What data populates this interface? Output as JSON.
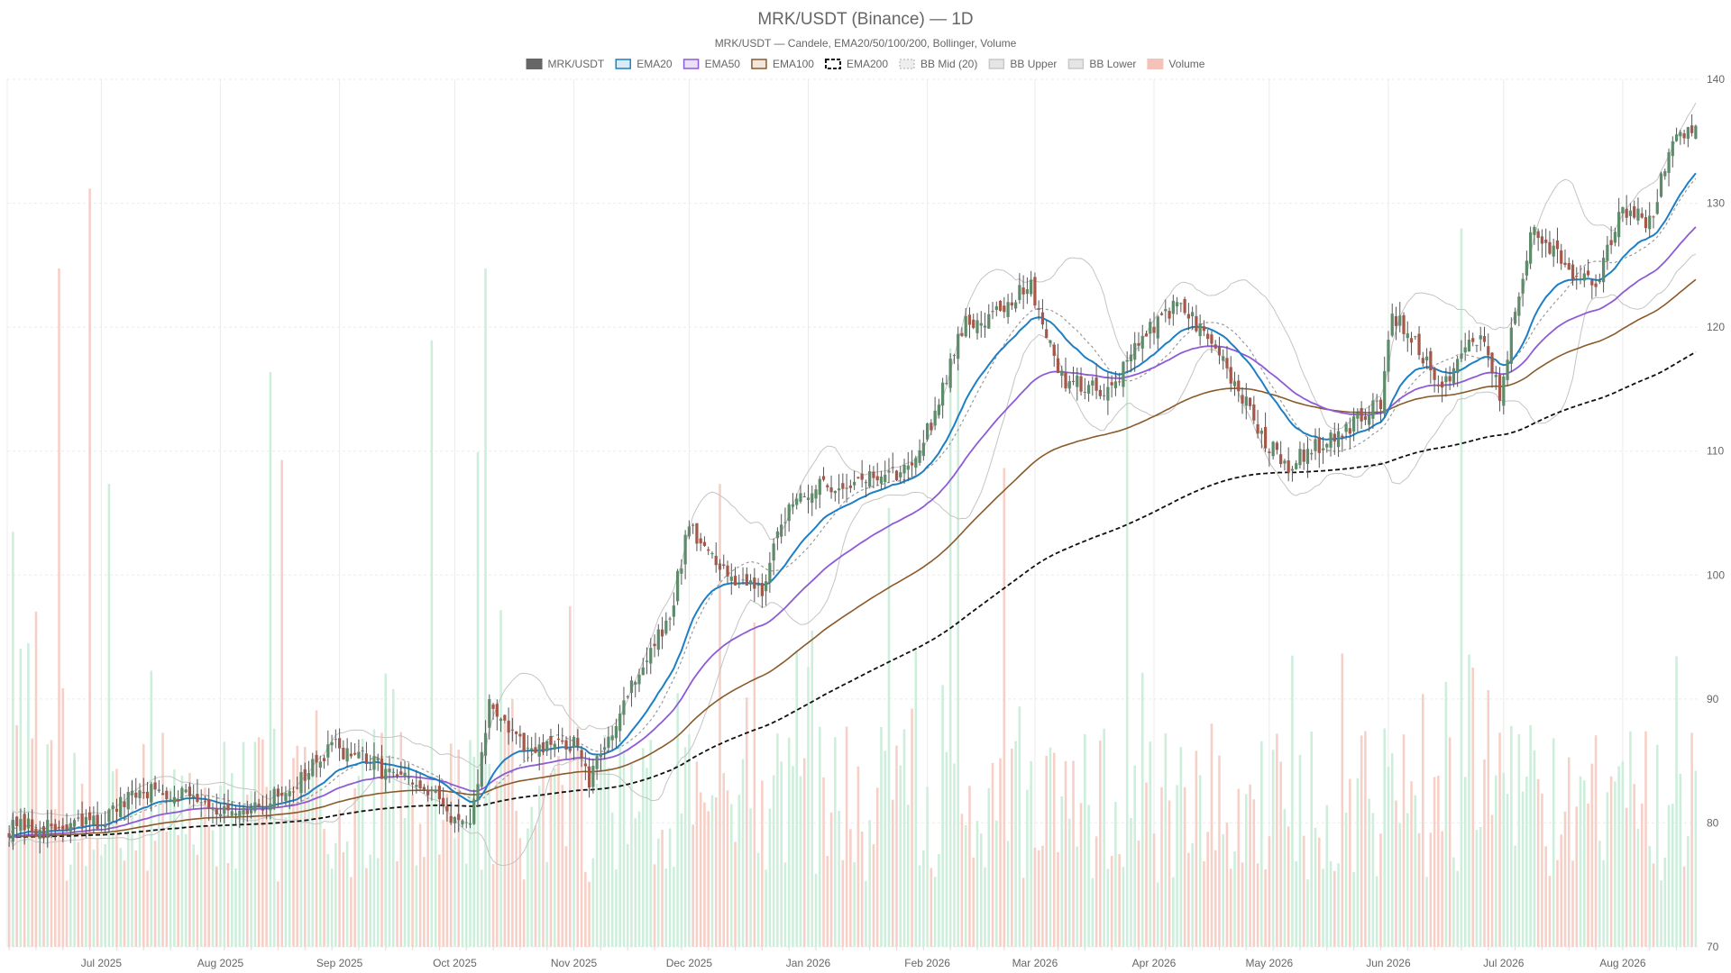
{
  "chart_data": {
    "type": "candlestick",
    "title": "MRK/USDT (Binance) — 1D",
    "subtitle": "MRK/USDT — Candele, EMA20/50/100/200, Bollinger, Volume",
    "legend": [
      {
        "label": "MRK/USDT",
        "swatch": "candle",
        "color": "#666666"
      },
      {
        "label": "EMA20",
        "swatch": "line",
        "color": "#1f7fc4"
      },
      {
        "label": "EMA50",
        "swatch": "line",
        "color": "#8e5bd6"
      },
      {
        "label": "EMA100",
        "swatch": "line",
        "color": "#8a5a2b"
      },
      {
        "label": "EMA200",
        "swatch": "dashed",
        "color": "#111111"
      },
      {
        "label": "BB Mid (20)",
        "swatch": "dotted",
        "color": "#aaaaaa"
      },
      {
        "label": "BB Upper",
        "swatch": "line",
        "color": "#c8c8c8"
      },
      {
        "label": "BB Lower",
        "swatch": "line",
        "color": "#c8c8c8"
      },
      {
        "label": "Volume",
        "swatch": "volume",
        "color": "#f4c2b8"
      }
    ],
    "legend_position": "top-center",
    "colors": {
      "up_candle": "#5e8c6a",
      "down_candle": "#a5574a",
      "wick": "#555555",
      "volume_up": "#cdeedb",
      "volume_down": "#f6cfc6",
      "grid": "#ebebeb"
    },
    "x_axis": {
      "start": "2025-06-07",
      "end": "2026-08-20",
      "ticks": [
        {
          "date": "2025-07-01",
          "label": "Jul 2025"
        },
        {
          "date": "2025-08-01",
          "label": "Aug 2025"
        },
        {
          "date": "2025-09-01",
          "label": "Sep 2025"
        },
        {
          "date": "2025-10-01",
          "label": "Oct 2025"
        },
        {
          "date": "2025-11-01",
          "label": "Nov 2025"
        },
        {
          "date": "2025-12-01",
          "label": "Dec 2025"
        },
        {
          "date": "2026-01-01",
          "label": "Jan 2026"
        },
        {
          "date": "2026-02-01",
          "label": "Feb 2026"
        },
        {
          "date": "2026-03-01",
          "label": "Mar 2026"
        },
        {
          "date": "2026-04-01",
          "label": "Apr 2026"
        },
        {
          "date": "2026-05-01",
          "label": "May 2026"
        },
        {
          "date": "2026-06-01",
          "label": "Jun 2026"
        },
        {
          "date": "2026-07-01",
          "label": "Jul 2026"
        },
        {
          "date": "2026-08-01",
          "label": "Aug 2026"
        }
      ]
    },
    "y_axis": {
      "position": "right",
      "range": [
        70,
        140
      ],
      "ticks": [
        70,
        80,
        90,
        100,
        110,
        120,
        130,
        140
      ]
    },
    "grid": true,
    "price_anchors": [
      {
        "date": "2025-06-07",
        "price": 79.6
      },
      {
        "date": "2025-06-20",
        "price": 79.5
      },
      {
        "date": "2025-07-01",
        "price": 80.2
      },
      {
        "date": "2025-07-12",
        "price": 82.6
      },
      {
        "date": "2025-07-25",
        "price": 82.5
      },
      {
        "date": "2025-08-05",
        "price": 80.2
      },
      {
        "date": "2025-08-20",
        "price": 83.0
      },
      {
        "date": "2025-08-31",
        "price": 86.2
      },
      {
        "date": "2025-09-15",
        "price": 83.9
      },
      {
        "date": "2025-09-26",
        "price": 82.0
      },
      {
        "date": "2025-10-05",
        "price": 79.2
      },
      {
        "date": "2025-10-10",
        "price": 89.7
      },
      {
        "date": "2025-10-20",
        "price": 85.5
      },
      {
        "date": "2025-11-01",
        "price": 86.6
      },
      {
        "date": "2025-11-05",
        "price": 83.2
      },
      {
        "date": "2025-11-15",
        "price": 90.6
      },
      {
        "date": "2025-11-26",
        "price": 96.5
      },
      {
        "date": "2025-12-01",
        "price": 104.4
      },
      {
        "date": "2025-12-08",
        "price": 100.6
      },
      {
        "date": "2025-12-20",
        "price": 99.0
      },
      {
        "date": "2025-12-28",
        "price": 106.5
      },
      {
        "date": "2026-01-10",
        "price": 107.4
      },
      {
        "date": "2026-01-25",
        "price": 108.2
      },
      {
        "date": "2026-02-01",
        "price": 111.5
      },
      {
        "date": "2026-02-10",
        "price": 120.0
      },
      {
        "date": "2026-02-20",
        "price": 121.5
      },
      {
        "date": "2026-02-28",
        "price": 123.4
      },
      {
        "date": "2026-03-08",
        "price": 115.8
      },
      {
        "date": "2026-03-20",
        "price": 115.0
      },
      {
        "date": "2026-04-01",
        "price": 120.2
      },
      {
        "date": "2026-04-08",
        "price": 121.9
      },
      {
        "date": "2026-04-18",
        "price": 117.6
      },
      {
        "date": "2026-04-30",
        "price": 110.8
      },
      {
        "date": "2026-05-06",
        "price": 108.9
      },
      {
        "date": "2026-05-20",
        "price": 111.8
      },
      {
        "date": "2026-05-30",
        "price": 113.8
      },
      {
        "date": "2026-06-02",
        "price": 121.2
      },
      {
        "date": "2026-06-15",
        "price": 115.3
      },
      {
        "date": "2026-06-25",
        "price": 119.6
      },
      {
        "date": "2026-06-30",
        "price": 114.5
      },
      {
        "date": "2026-07-08",
        "price": 127.6
      },
      {
        "date": "2026-07-15",
        "price": 125.5
      },
      {
        "date": "2026-07-25",
        "price": 123.2
      },
      {
        "date": "2026-08-01",
        "price": 129.8
      },
      {
        "date": "2026-08-08",
        "price": 128.5
      },
      {
        "date": "2026-08-14",
        "price": 134.8
      },
      {
        "date": "2026-08-20",
        "price": 136.5
      }
    ],
    "volume_spikes": [
      {
        "date": "2025-06-08",
        "scale": 0.52
      },
      {
        "date": "2025-06-14",
        "scale": 0.42
      },
      {
        "date": "2025-06-20",
        "scale": 0.85
      },
      {
        "date": "2025-06-28",
        "scale": 0.95
      },
      {
        "date": "2025-07-03",
        "scale": 0.58
      },
      {
        "date": "2025-08-14",
        "scale": 0.72
      },
      {
        "date": "2025-08-17",
        "scale": 0.61
      },
      {
        "date": "2025-09-25",
        "scale": 0.76
      },
      {
        "date": "2025-10-07",
        "scale": 0.62
      },
      {
        "date": "2025-10-09",
        "scale": 0.85
      },
      {
        "date": "2025-12-09",
        "scale": 0.58
      },
      {
        "date": "2026-01-22",
        "scale": 0.55
      },
      {
        "date": "2026-02-07",
        "scale": 0.75
      },
      {
        "date": "2026-02-09",
        "scale": 0.73
      },
      {
        "date": "2026-02-21",
        "scale": 0.6
      },
      {
        "date": "2026-03-25",
        "scale": 0.72
      },
      {
        "date": "2026-06-20",
        "scale": 0.9
      }
    ]
  }
}
